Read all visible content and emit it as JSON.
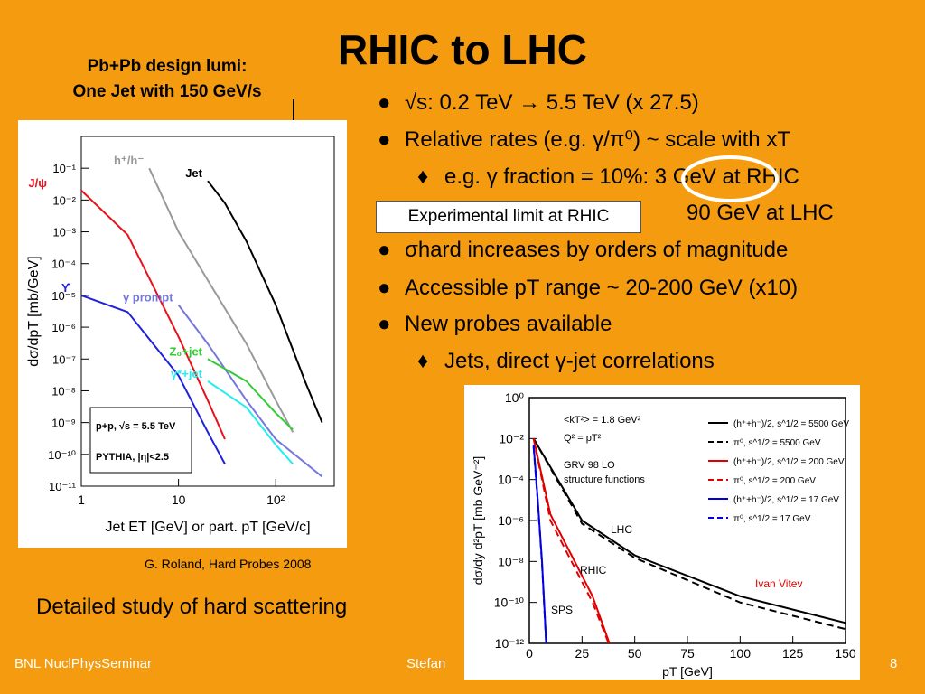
{
  "slide": {
    "title": "RHIC to LHC",
    "callout_line1": "Pb+Pb design lumi:",
    "callout_line2": "One Jet with 150 GeV/s",
    "bullets": [
      {
        "sym": "●",
        "text": "√s:  0.2 TeV → 5.5 TeV (x 27.5)"
      },
      {
        "sym": "●",
        "text": "Relative rates (e.g. γ/π⁰) ~ scale with xT"
      },
      {
        "sym": "♦",
        "text": "e.g. γ fraction = 10%:  3 GeV at RHIC"
      },
      {
        "sym": "",
        "text": "90 GeV at LHC"
      },
      {
        "sym": "●",
        "text": "σhard increases by orders of magnitude"
      },
      {
        "sym": "●",
        "text": "Accessible pT range ~ 20-200 GeV (x10)"
      },
      {
        "sym": "●",
        "text": "New probes available"
      },
      {
        "sym": "♦",
        "text": "Jets, direct γ-jet correlations"
      }
    ],
    "experimental_limit": "Experimental limit at RHIC",
    "credit": "G. Roland, Hard Probes 2008",
    "bottom_text": "Detailed study of hard scattering",
    "footer_left": "BNL NuclPhysSeminar",
    "footer_mid": "Stefan",
    "page_number": "8",
    "colors": {
      "background": "#F59B0F",
      "circle": "#FFFFFF"
    }
  },
  "chart_data": [
    {
      "type": "line",
      "title": "",
      "xlabel": "Jet ET [GeV] or part. pT [GeV/c]",
      "ylabel": "dσ/dpT [mb/GeV]",
      "xscale": "log",
      "yscale": "log",
      "xlim": [
        1,
        400
      ],
      "ylim": [
        1e-11,
        1
      ],
      "xticks": [
        "1",
        "10",
        "10²"
      ],
      "yticks": [
        "10⁻¹",
        "10⁻²",
        "10⁻³",
        "10⁻⁴",
        "10⁻⁵",
        "10⁻⁶",
        "10⁻⁷",
        "10⁻⁸",
        "10⁻⁹",
        "10⁻¹⁰",
        "10⁻¹¹"
      ],
      "legend_box": [
        "p+p, √s = 5.5 TeV",
        "PYTHIA, |η|<2.5"
      ],
      "series": [
        {
          "name": "Jet",
          "color": "#000000",
          "x": [
            20,
            30,
            50,
            100,
            200,
            300
          ],
          "y": [
            0.04,
            0.008,
            0.0005,
            5e-06,
            2e-08,
            1e-09
          ]
        },
        {
          "name": "h⁺/h⁻",
          "color": "#999999",
          "x": [
            5,
            10,
            20,
            50,
            100,
            150
          ],
          "y": [
            0.1,
            0.001,
            3e-05,
            3e-07,
            5e-09,
            5e-10
          ]
        },
        {
          "name": "J/ψ",
          "color": "#E8101A",
          "x": [
            1,
            3,
            10,
            20,
            30
          ],
          "y": [
            0.02,
            0.0008,
            5e-07,
            5e-09,
            3e-10
          ]
        },
        {
          "name": "ϒ",
          "color": "#2020DD",
          "x": [
            1,
            3,
            10,
            20,
            30
          ],
          "y": [
            1e-05,
            3e-06,
            3e-08,
            5e-10,
            5e-11
          ]
        },
        {
          "name": "γ prompt",
          "color": "#7777DD",
          "x": [
            10,
            20,
            50,
            100,
            300
          ],
          "y": [
            5e-06,
            3e-07,
            5e-09,
            3e-10,
            2e-11
          ]
        },
        {
          "name": "Z₀+jet",
          "color": "#33CC33",
          "x": [
            20,
            50,
            100,
            150
          ],
          "y": [
            1e-07,
            2e-08,
            2e-09,
            6e-10
          ]
        },
        {
          "name": "γ*+jet",
          "color": "#22EEEE",
          "x": [
            20,
            50,
            100,
            150
          ],
          "y": [
            2e-08,
            3e-09,
            2e-10,
            5e-11
          ]
        }
      ]
    },
    {
      "type": "line",
      "title": "",
      "xlabel": "pT [GeV]",
      "ylabel": "dσ/dy d²pT [mb GeV⁻²]",
      "yscale": "log",
      "xlim": [
        0,
        150
      ],
      "ylim": [
        1e-12,
        1
      ],
      "xticks": [
        "0",
        "25",
        "50",
        "75",
        "100",
        "125",
        "150"
      ],
      "yticks": [
        "10⁰",
        "10⁻²",
        "10⁻⁴",
        "10⁻⁶",
        "10⁻⁸",
        "10⁻¹⁰",
        "10⁻¹²"
      ],
      "annotations": [
        "<kT²> = 1.8 GeV²",
        "Q² = pT²",
        "GRV 98 LO",
        "structure functions",
        "LHC",
        "RHIC",
        "SPS",
        "Ivan Vitev"
      ],
      "series": [
        {
          "name": "(h⁺+h⁻)/2, s^1/2 = 5500 GeV",
          "color": "#000000",
          "dash": false,
          "x": [
            2,
            25,
            50,
            100,
            150
          ],
          "y": [
            0.01,
            1e-06,
            2e-08,
            2e-10,
            1e-11
          ]
        },
        {
          "name": "π⁰, s^1/2 = 5500 GeV",
          "color": "#000000",
          "dash": true,
          "x": [
            2,
            25,
            50,
            100,
            150
          ],
          "y": [
            0.01,
            7e-07,
            1.5e-08,
            1e-10,
            5e-12
          ]
        },
        {
          "name": "(h⁺+h⁻)/2, s^1/2 = 200 GeV",
          "color": "#E00000",
          "dash": false,
          "x": [
            2,
            10,
            20,
            30,
            38
          ],
          "y": [
            0.01,
            2e-06,
            2e-08,
            2e-10,
            1e-12
          ]
        },
        {
          "name": "π⁰, s^1/2 = 200 GeV",
          "color": "#E00000",
          "dash": true,
          "x": [
            2,
            10,
            20,
            30,
            38
          ],
          "y": [
            0.01,
            1e-06,
            1e-08,
            1e-10,
            8e-13
          ]
        },
        {
          "name": "(h⁺+h⁻)/2, s^1/2 = 17 GeV",
          "color": "#0000E0",
          "dash": false,
          "x": [
            2,
            4,
            6,
            8
          ],
          "y": [
            0.005,
            1e-05,
            1e-08,
            1e-12
          ]
        },
        {
          "name": "π⁰, s^1/2 = 17 GeV",
          "color": "#0000E0",
          "dash": true,
          "x": [
            2,
            4,
            6,
            8
          ],
          "y": [
            0.004,
            8e-06,
            8e-09,
            8e-13
          ]
        }
      ]
    }
  ]
}
